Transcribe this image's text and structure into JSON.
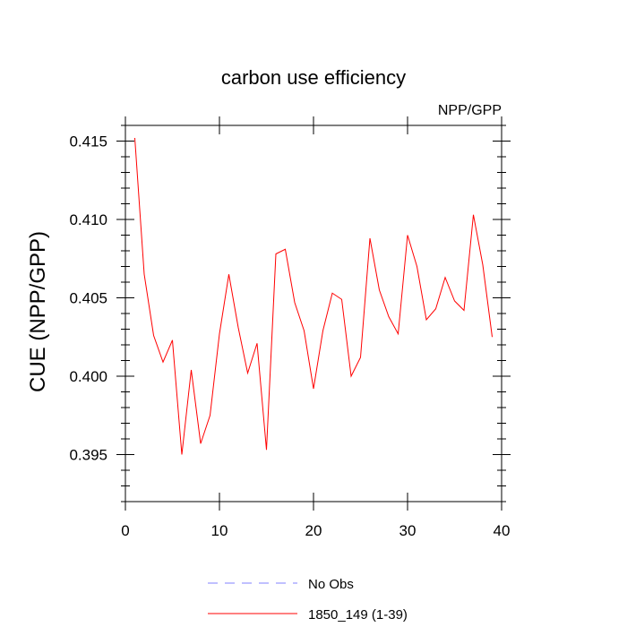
{
  "chart_data": {
    "type": "line",
    "title": "carbon use efficiency",
    "subtitle_right": "NPP/GPP",
    "xlabel": "",
    "ylabel": "CUE  (NPP/GPP)",
    "xlim": [
      0,
      40
    ],
    "ylim": [
      0.392,
      0.416
    ],
    "x_ticks": [
      0,
      10,
      20,
      30,
      40
    ],
    "x_tick_labels": [
      "0",
      "10",
      "20",
      "30",
      "40"
    ],
    "y_ticks": [
      0.395,
      0.4,
      0.405,
      0.41,
      0.415
    ],
    "y_tick_labels": [
      "0.395",
      "0.400",
      "0.405",
      "0.410",
      "0.415"
    ],
    "grid": false,
    "legend_position": "bottom",
    "series": [
      {
        "name": "1850_149 (1-39)",
        "color": "#ff0000",
        "style": "solid",
        "x": [
          1,
          2,
          3,
          4,
          5,
          6,
          7,
          8,
          9,
          10,
          11,
          12,
          13,
          14,
          15,
          16,
          17,
          18,
          19,
          20,
          21,
          22,
          23,
          24,
          25,
          26,
          27,
          28,
          29,
          30,
          31,
          32,
          33,
          34,
          35,
          36,
          37,
          38,
          39
        ],
        "y": [
          0.4152,
          0.4065,
          0.4026,
          0.4009,
          0.4023,
          0.395,
          0.4004,
          0.3957,
          0.3975,
          0.4027,
          0.4065,
          0.4031,
          0.4002,
          0.4021,
          0.3953,
          0.4078,
          0.4081,
          0.4047,
          0.4029,
          0.3992,
          0.4029,
          0.4053,
          0.4049,
          0.4,
          0.4012,
          0.4088,
          0.4055,
          0.4038,
          0.4027,
          0.409,
          0.407,
          0.4036,
          0.4043,
          0.4063,
          0.4048,
          0.4042,
          0.4103,
          0.4071,
          0.4025
        ]
      }
    ],
    "legend": [
      {
        "label": "No Obs",
        "color": "#8080ff",
        "style": "dashed"
      },
      {
        "label": "1850_149 (1-39)",
        "color": "#ff0000",
        "style": "solid"
      }
    ]
  }
}
